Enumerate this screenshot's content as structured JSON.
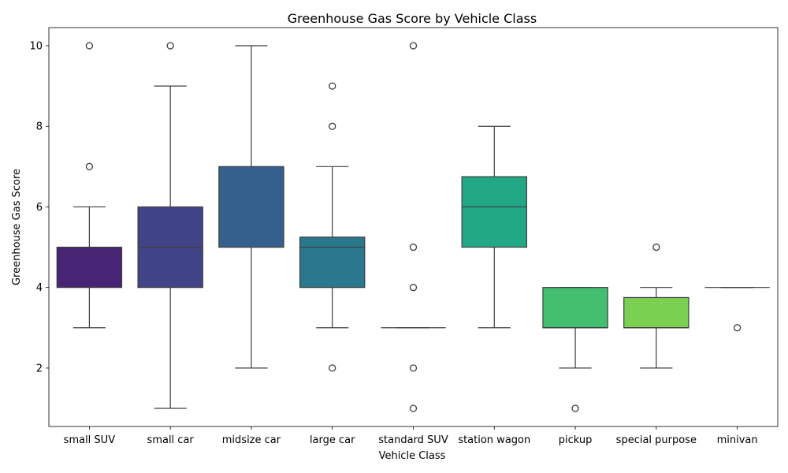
{
  "chart_data": {
    "type": "box",
    "title": "Greenhouse Gas Score by Vehicle Class",
    "xlabel": "Vehicle Class",
    "ylabel": "Greenhouse Gas Score",
    "ylim": [
      0.55,
      10.45
    ],
    "yticks": [
      2,
      4,
      6,
      8,
      10
    ],
    "grid": false,
    "boxes": [
      {
        "category": "small SUV",
        "color": "#482475",
        "whisker_low": 3,
        "q1": 4,
        "median": 5,
        "q3": 5,
        "whisker_high": 6,
        "outliers": [
          7,
          10
        ]
      },
      {
        "category": "small car",
        "color": "#414487",
        "whisker_low": 1,
        "q1": 4,
        "median": 5,
        "q3": 6,
        "whisker_high": 9,
        "outliers": [
          10
        ]
      },
      {
        "category": "midsize car",
        "color": "#355f8d",
        "whisker_low": 2,
        "q1": 5,
        "median": 5,
        "q3": 7,
        "whisker_high": 10,
        "outliers": []
      },
      {
        "category": "large car",
        "color": "#2a788e",
        "whisker_low": 3,
        "q1": 4,
        "median": 5,
        "q3": 5.25,
        "whisker_high": 7,
        "outliers": [
          2,
          8,
          9
        ]
      },
      {
        "category": "standard SUV",
        "color": "#21918c",
        "whisker_low": 3,
        "q1": 3,
        "median": 3,
        "q3": 3,
        "whisker_high": 3,
        "outliers": [
          1,
          2,
          4,
          5,
          10
        ]
      },
      {
        "category": "station wagon",
        "color": "#22a884",
        "whisker_low": 3,
        "q1": 5,
        "median": 6,
        "q3": 6.75,
        "whisker_high": 8,
        "outliers": []
      },
      {
        "category": "pickup",
        "color": "#44bf70",
        "whisker_low": 2,
        "q1": 3,
        "median": 3,
        "q3": 4,
        "whisker_high": 4,
        "outliers": [
          1
        ]
      },
      {
        "category": "special purpose",
        "color": "#7ad151",
        "whisker_low": 2,
        "q1": 3,
        "median": 3,
        "q3": 3.75,
        "whisker_high": 4,
        "outliers": [
          5
        ]
      },
      {
        "category": "minivan",
        "color": "#bddf26",
        "whisker_low": 4,
        "q1": 4,
        "median": 4,
        "q3": 4,
        "whisker_high": 4,
        "outliers": [
          3
        ]
      }
    ]
  }
}
